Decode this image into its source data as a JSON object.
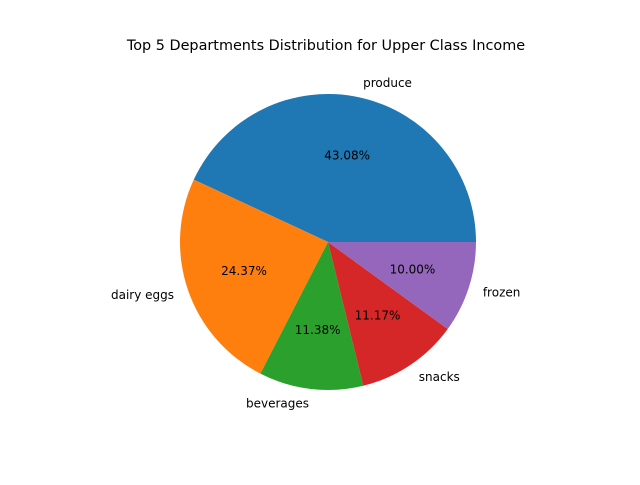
{
  "chart_data": {
    "type": "pie",
    "title": "Top 5 Departments Distribution for Upper Class Income",
    "categories": [
      "produce",
      "dairy eggs",
      "beverages",
      "snacks",
      "frozen"
    ],
    "values": [
      43.08,
      24.37,
      11.38,
      11.17,
      10.0
    ],
    "percent_labels": [
      "43.08%",
      "24.37%",
      "11.38%",
      "11.17%",
      "10.00%"
    ],
    "colors": [
      "#1f77b4",
      "#ff7f0e",
      "#2ca02c",
      "#d62728",
      "#9467bd"
    ],
    "start_angle_deg": 0,
    "direction": "counterclockwise",
    "legend": "none"
  }
}
